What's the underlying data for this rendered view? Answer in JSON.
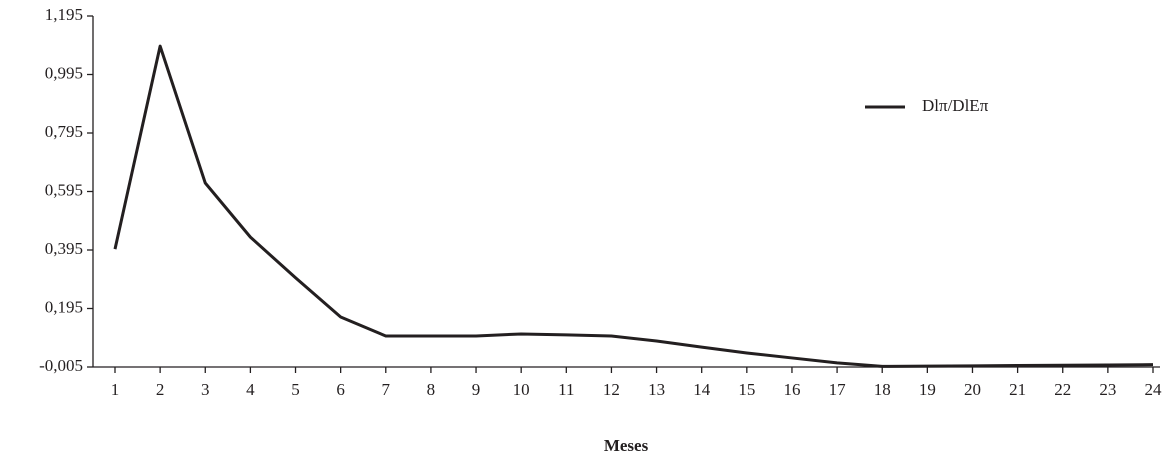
{
  "chart_data": {
    "type": "line",
    "x_label": "Meses",
    "categories": [
      "1",
      "2",
      "3",
      "4",
      "5",
      "6",
      "7",
      "8",
      "9",
      "10",
      "11",
      "12",
      "13",
      "14",
      "15",
      "16",
      "17",
      "18",
      "19",
      "20",
      "21",
      "22",
      "23",
      "24"
    ],
    "series": [
      {
        "name": "Dlπ/DlEπ",
        "color": "#231f20",
        "values": [
          0.398,
          1.092,
          0.624,
          0.439,
          0.3,
          0.166,
          0.101,
          0.101,
          0.101,
          0.108,
          0.105,
          0.101,
          0.084,
          0.063,
          0.043,
          0.026,
          0.009,
          -0.003,
          -0.002,
          -0.001,
          0,
          0.001,
          0.002,
          0.003
        ]
      }
    ],
    "ylim": [
      -0.005,
      1.195
    ],
    "yticks": [
      {
        "value": -0.005,
        "label": "-0,005"
      },
      {
        "value": 0.195,
        "label": "0,195"
      },
      {
        "value": 0.395,
        "label": "0,395"
      },
      {
        "value": 0.595,
        "label": "0,595"
      },
      {
        "value": 0.795,
        "label": "0,795"
      },
      {
        "value": 0.995,
        "label": "0,995"
      },
      {
        "value": 1.195,
        "label": "1,195"
      }
    ],
    "legend": "upper right"
  }
}
